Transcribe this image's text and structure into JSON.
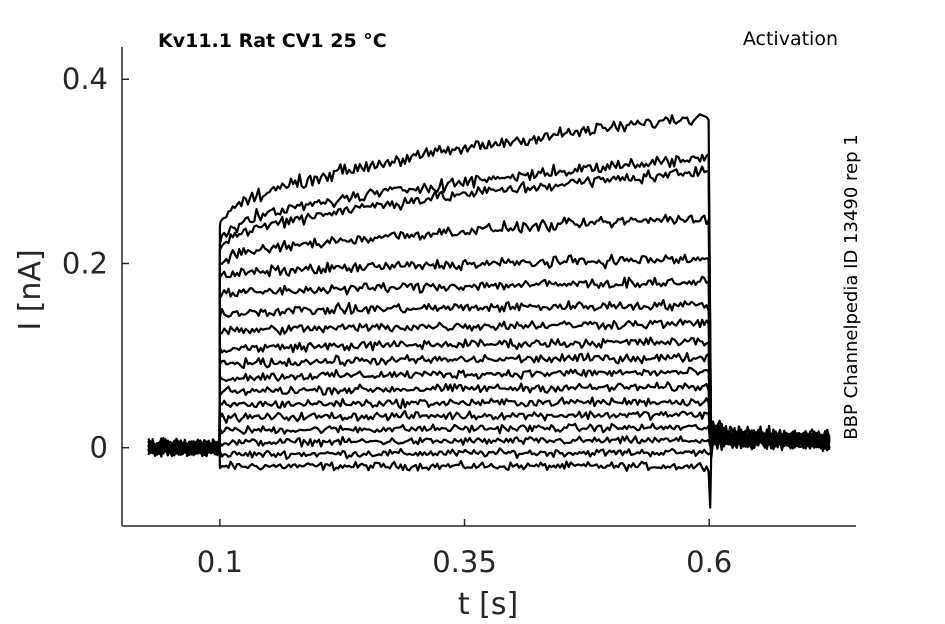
{
  "chart_data": {
    "type": "line",
    "title": "Kv11.1  Rat  CV1  25 °C",
    "protocol": "Activation",
    "side_label": "BBP Channelpedia ID 13490 rep 1",
    "xlabel": "t [s]",
    "ylabel": "I [nA]",
    "xlim": [
      0.0,
      0.75
    ],
    "ylim": [
      -0.085,
      0.435
    ],
    "xticks": [
      0.1,
      0.35,
      0.6
    ],
    "xtick_labels": [
      "0.1",
      "0.35",
      "0.6"
    ],
    "yticks": [
      0,
      0.2,
      0.4
    ],
    "ytick_labels": [
      "0",
      "0.2",
      "0.4"
    ],
    "grid": false,
    "legend": "none",
    "line_color": "#000000",
    "pulse_start": 0.1,
    "pulse_end": 0.6,
    "record_start": 0.027,
    "record_end": 0.723,
    "series": [
      {
        "start": -0.02,
        "end": -0.02
      },
      {
        "start": -0.008,
        "end": -0.005
      },
      {
        "start": 0.005,
        "end": 0.008
      },
      {
        "start": 0.018,
        "end": 0.022
      },
      {
        "start": 0.032,
        "end": 0.036
      },
      {
        "start": 0.046,
        "end": 0.05
      },
      {
        "start": 0.06,
        "end": 0.066
      },
      {
        "start": 0.075,
        "end": 0.082
      },
      {
        "start": 0.09,
        "end": 0.098
      },
      {
        "start": 0.106,
        "end": 0.115
      },
      {
        "start": 0.125,
        "end": 0.135
      },
      {
        "start": 0.145,
        "end": 0.155
      },
      {
        "start": 0.165,
        "end": 0.18
      },
      {
        "start": 0.185,
        "end": 0.205
      },
      {
        "start": 0.2,
        "end": 0.25
      },
      {
        "start": 0.215,
        "end": 0.3
      },
      {
        "start": 0.225,
        "end": 0.315
      },
      {
        "start": 0.24,
        "end": 0.36
      }
    ]
  }
}
